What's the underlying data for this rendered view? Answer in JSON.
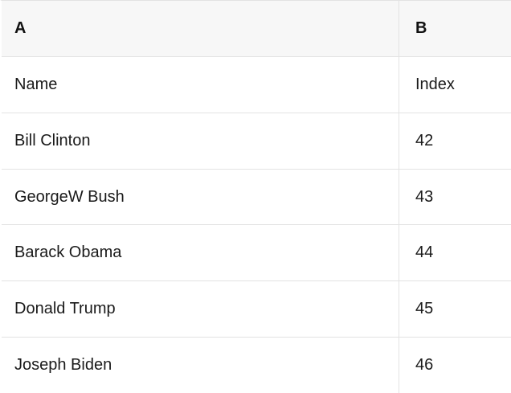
{
  "colors": {
    "header_bg": "#f7f7f7",
    "border": "#e3e3e3",
    "text": "#1a1a1a"
  },
  "table": {
    "header": {
      "col_a": "A",
      "col_b": "B"
    },
    "rows": [
      {
        "a": "Name",
        "b": "Index"
      },
      {
        "a": "Bill Clinton",
        "b": "42"
      },
      {
        "a": "GeorgeW Bush",
        "b": "43"
      },
      {
        "a": "Barack Obama",
        "b": "44"
      },
      {
        "a": "Donald Trump",
        "b": "45"
      },
      {
        "a": "Joseph Biden",
        "b": "46"
      }
    ]
  }
}
